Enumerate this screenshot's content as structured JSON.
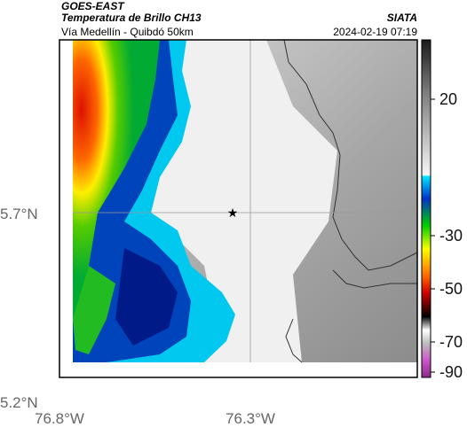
{
  "header": {
    "satellite": "GOES-EAST",
    "product": "Temperatura de Brillo CH13",
    "region": "Vía Medellín - Quibdó 50km",
    "agency": "SIATA",
    "datetime": "2024-02-19 07:19"
  },
  "axes": {
    "lat_labels": [
      "5.7°N",
      "5.2°N"
    ],
    "lon_labels": [
      "76.8°W",
      "76.3°W"
    ]
  },
  "colorbar": {
    "ticks": [
      "20",
      "-30",
      "-50",
      "-70",
      "-90"
    ]
  },
  "colors": {
    "ocean_frame": "#ffffff",
    "border_line": "#333333",
    "grid_line": "#9a9a9a"
  }
}
